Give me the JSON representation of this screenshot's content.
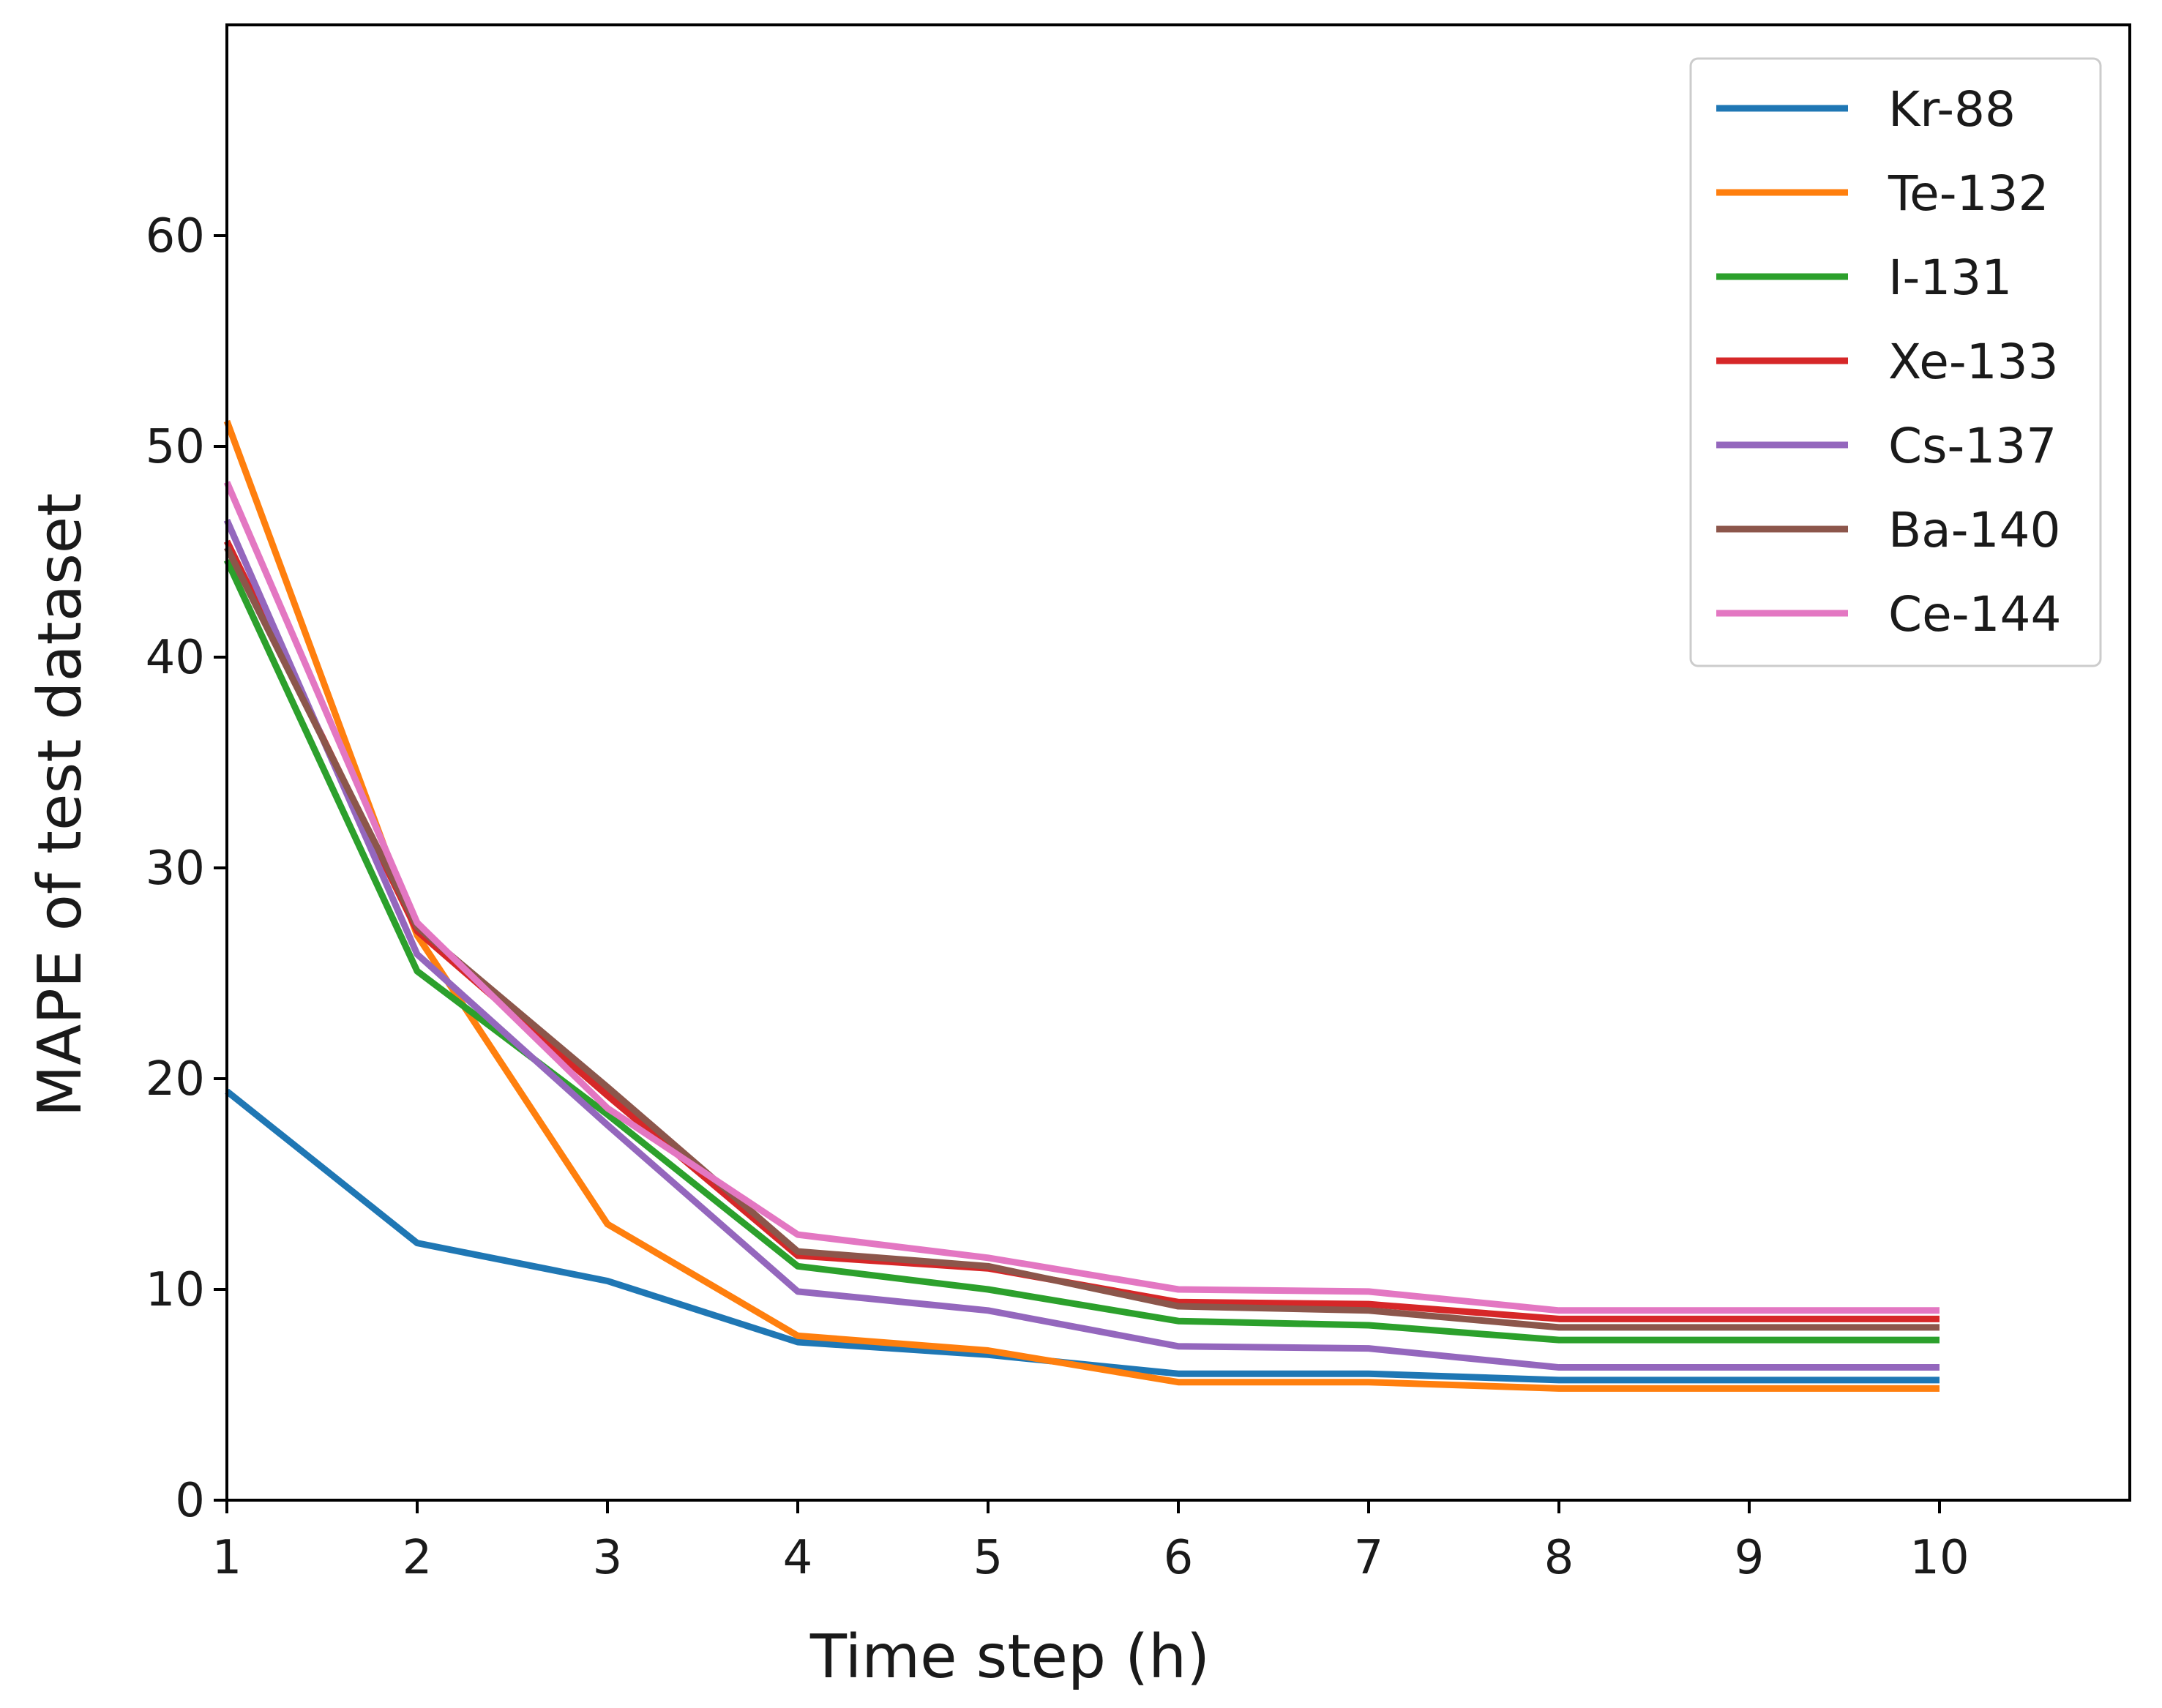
{
  "chart_data": {
    "type": "line",
    "title": "",
    "xlabel": "Time step (h)",
    "ylabel": "MAPE of test dataset",
    "xlim": [
      1,
      11
    ],
    "ylim": [
      0,
      70
    ],
    "x": [
      1,
      2,
      3,
      4,
      5,
      6,
      7,
      8,
      9,
      10
    ],
    "xticks": [
      "1",
      "2",
      "3",
      "4",
      "5",
      "6",
      "7",
      "8",
      "9",
      "10"
    ],
    "yticks": [
      "0",
      "10",
      "20",
      "30",
      "40",
      "50",
      "60"
    ],
    "grid": false,
    "legend_position": "top-right",
    "series": [
      {
        "name": "Kr-88",
        "color": "#1f77b4",
        "values": [
          19.4,
          12.2,
          10.4,
          7.5,
          6.9,
          6.0,
          6.0,
          5.7,
          5.7,
          5.7
        ]
      },
      {
        "name": "Te-132",
        "color": "#ff7f0e",
        "values": [
          51.2,
          26.8,
          13.1,
          7.8,
          7.1,
          5.6,
          5.6,
          5.3,
          5.3,
          5.3
        ]
      },
      {
        "name": "I-131",
        "color": "#2ca02c",
        "values": [
          44.6,
          25.1,
          18.3,
          11.1,
          10.0,
          8.5,
          8.3,
          7.6,
          7.6,
          7.6
        ]
      },
      {
        "name": "Xe-133",
        "color": "#d62728",
        "values": [
          45.5,
          27.0,
          19.2,
          11.6,
          11.0,
          9.4,
          9.3,
          8.6,
          8.6,
          8.6
        ]
      },
      {
        "name": "Cs-137",
        "color": "#9467bd",
        "values": [
          46.5,
          25.9,
          17.8,
          9.9,
          9.0,
          7.3,
          7.2,
          6.3,
          6.3,
          6.3
        ]
      },
      {
        "name": "Ba-140",
        "color": "#8c564b",
        "values": [
          45.2,
          27.2,
          19.6,
          11.8,
          11.1,
          9.2,
          9.0,
          8.2,
          8.2,
          8.2
        ]
      },
      {
        "name": "Ce-144",
        "color": "#e377c2",
        "values": [
          48.3,
          27.4,
          18.6,
          12.6,
          11.5,
          10.0,
          9.9,
          9.0,
          9.0,
          9.0
        ]
      }
    ]
  }
}
